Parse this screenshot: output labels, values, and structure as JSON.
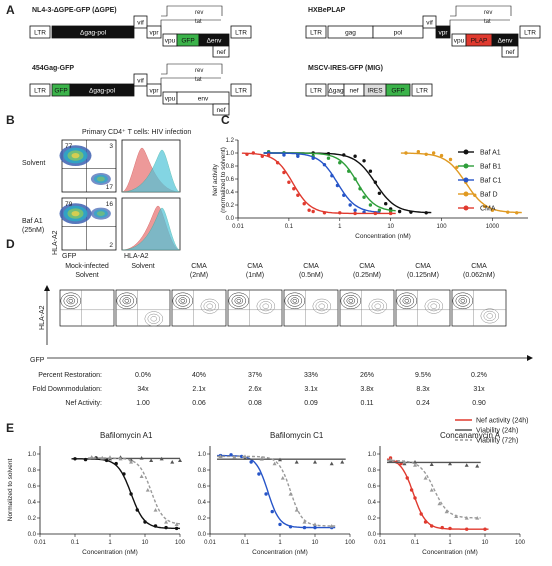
{
  "panel_letters": [
    "A",
    "B",
    "C",
    "D",
    "E"
  ],
  "constructs": [
    {
      "title": "NL4-3-ΔGPE-GFP (ΔGPE)",
      "blocks": [
        "LTR",
        "Δgag-pol",
        "vif",
        "vpr",
        "vpu",
        "GFP",
        "Δenv",
        "nef",
        "LTR"
      ],
      "labels": [
        "rev",
        "tat"
      ]
    },
    {
      "title": "HXBePLAP",
      "blocks": [
        "LTR",
        "gag",
        "pol",
        "vif",
        "vpr",
        "vpu",
        "PLAP",
        "Δenv",
        "nef",
        "LTR"
      ],
      "labels": [
        "rev",
        "tat"
      ]
    },
    {
      "title": "454Gag-GFP",
      "blocks": [
        "LTR",
        "GFP",
        "Δgag-pol",
        "vif",
        "vpr",
        "vpu",
        "env",
        "nef",
        "LTR"
      ],
      "labels": [
        "rev",
        "tat"
      ]
    },
    {
      "title": "MSCV-IRES-GFP (MIG)",
      "blocks": [
        "LTR",
        "Δgag",
        "nef",
        "IRES",
        "GFP",
        "LTR"
      ]
    }
  ],
  "panel_b": {
    "title": "Primary CD4⁺ T cells: HIV infection",
    "rows": [
      {
        "label": "Solvent",
        "quadrants": [
          "77",
          "3",
          "17"
        ]
      },
      {
        "label": "Baf A1",
        "label2": "(25nM)",
        "quadrants": [
          "79",
          "16",
          "2"
        ]
      }
    ],
    "xlabel_left": "GFP",
    "ylabel": "HLA-A2",
    "xlabel_right": "HLA-A2"
  },
  "colors": {
    "baf_a1": "#111111",
    "baf_b1": "#2e9e3a",
    "baf_c1": "#2755c8",
    "baf_d": "#e09a22",
    "cma": "#e03a2f",
    "viab": "#555555",
    "viab72": "#9a9a9a",
    "solvent_hist": "#e87878",
    "cma_hist": "#4fc4d8"
  },
  "chart_data": [
    {
      "type": "scatter",
      "panel": "C",
      "ylabel": "Nef activity",
      "ylabel2": "(normalized to solvent)",
      "xlabel": "Concentration (nM)",
      "xscale": "log",
      "xlim": [
        0.01,
        5000
      ],
      "ylim": [
        0,
        1.2
      ],
      "xticks": [
        "0.01",
        "0.1",
        "1",
        "10",
        "100",
        "1000"
      ],
      "yticks": [
        "0.0",
        "0.2",
        "0.4",
        "0.6",
        "0.8",
        "1.0",
        "1.2"
      ],
      "legend_position": "top-right",
      "series": [
        {
          "name": "Baf A1",
          "ec50": 5,
          "top": 1,
          "bottom": 0.08,
          "hill": 2.2,
          "x": [
            0.04,
            0.08,
            0.15,
            0.3,
            0.6,
            1.2,
            2,
            3,
            4,
            5,
            6,
            8,
            10,
            15,
            25,
            50
          ],
          "y": [
            1.0,
            1.0,
            0.98,
            1.0,
            0.99,
            0.97,
            0.95,
            0.88,
            0.72,
            0.55,
            0.38,
            0.22,
            0.14,
            0.1,
            0.09,
            0.08
          ]
        },
        {
          "name": "Baf B1",
          "ec50": 2.2,
          "top": 1,
          "bottom": 0.1,
          "hill": 2.5,
          "x": [
            0.04,
            0.08,
            0.15,
            0.3,
            0.6,
            1,
            1.5,
            2,
            2.5,
            3,
            4,
            6,
            10
          ],
          "y": [
            1.02,
            1.0,
            0.98,
            0.95,
            0.92,
            0.85,
            0.72,
            0.6,
            0.45,
            0.32,
            0.2,
            0.12,
            0.1
          ]
        },
        {
          "name": "Baf C1",
          "ec50": 0.9,
          "top": 1,
          "bottom": 0.08,
          "hill": 2.4,
          "x": [
            0.04,
            0.08,
            0.15,
            0.3,
            0.5,
            0.7,
            0.9,
            1.2,
            1.6,
            2,
            3,
            5
          ],
          "y": [
            1.0,
            0.97,
            0.95,
            0.92,
            0.82,
            0.65,
            0.5,
            0.35,
            0.2,
            0.12,
            0.09,
            0.08
          ]
        },
        {
          "name": "Baf D",
          "ec50": 300,
          "top": 1,
          "bottom": 0.08,
          "hill": 2.2,
          "x": [
            20,
            35,
            50,
            70,
            100,
            150,
            200,
            300,
            450,
            700,
            1000,
            2000,
            3000
          ],
          "y": [
            1.0,
            1.02,
            0.98,
            1.0,
            0.96,
            0.9,
            0.78,
            0.55,
            0.35,
            0.18,
            0.12,
            0.09,
            0.08
          ]
        },
        {
          "name": "CMA",
          "ec50": 0.12,
          "top": 1,
          "bottom": 0.07,
          "hill": 2.5,
          "x": [
            0.015,
            0.02,
            0.03,
            0.04,
            0.06,
            0.08,
            0.1,
            0.125,
            0.15,
            0.2,
            0.25,
            0.3,
            0.5,
            1,
            2,
            5,
            10
          ],
          "y": [
            0.98,
            1.0,
            0.95,
            0.97,
            0.85,
            0.7,
            0.55,
            0.45,
            0.35,
            0.22,
            0.12,
            0.1,
            0.08,
            0.08,
            0.07,
            0.07,
            0.07
          ]
        }
      ]
    },
    {
      "type": "scatter",
      "panel": "E1",
      "title": "Bafilomycin A1",
      "ylabel": "Normalized to solvent",
      "xlabel": "Concentration (nM)",
      "xscale": "log",
      "xlim": [
        0.01,
        100
      ],
      "ylim": [
        0,
        1.1
      ],
      "xticks": [
        "0.01",
        "0.1",
        "1",
        "10",
        "100"
      ],
      "yticks": [
        "0.0",
        "0.2",
        "0.4",
        "0.6",
        "0.8",
        "1.0"
      ],
      "series": [
        {
          "name": "Nef activity (24h)",
          "ec50": 4,
          "top": 0.94,
          "bottom": 0.07,
          "hill": 2.3,
          "x": [
            0.1,
            0.2,
            0.4,
            0.8,
            1.5,
            2.5,
            4,
            6,
            10,
            20,
            40,
            80
          ],
          "y": [
            0.94,
            0.93,
            0.95,
            0.92,
            0.88,
            0.75,
            0.5,
            0.3,
            0.15,
            0.1,
            0.08,
            0.07
          ]
        },
        {
          "name": "Viability (24h)",
          "ec50": 9999,
          "top": 0.95,
          "bottom": 0.9,
          "hill": 1,
          "x": [
            0.3,
            0.6,
            1,
            2,
            4,
            8,
            15,
            30,
            60,
            100
          ],
          "y": [
            0.96,
            0.95,
            0.94,
            0.96,
            0.93,
            0.95,
            0.92,
            0.94,
            0.9,
            0.92
          ]
        },
        {
          "name": "Viability (72h)",
          "ec50": 15,
          "top": 0.95,
          "bottom": 0.12,
          "hill": 2.5,
          "x": [
            0.3,
            0.6,
            1,
            2,
            4,
            8,
            12,
            20,
            40,
            80
          ],
          "y": [
            0.96,
            0.95,
            0.96,
            0.94,
            0.9,
            0.72,
            0.55,
            0.3,
            0.15,
            0.12
          ]
        }
      ]
    },
    {
      "type": "scatter",
      "panel": "E2",
      "title": "Bafilomycin C1",
      "xlabel": "Concentration (nM)",
      "xscale": "log",
      "xlim": [
        0.01,
        100
      ],
      "ylim": [
        0,
        1.1
      ],
      "xticks": [
        "0.01",
        "0.1",
        "1",
        "10",
        "100"
      ],
      "yticks": [
        "0.0",
        "0.2",
        "0.4",
        "0.6",
        "0.8",
        "1.0"
      ],
      "series": [
        {
          "name": "Nef activity (24h)",
          "ec50": 0.45,
          "top": 0.98,
          "bottom": 0.08,
          "hill": 2.6,
          "x": [
            0.02,
            0.04,
            0.08,
            0.15,
            0.25,
            0.4,
            0.6,
            1,
            2,
            5,
            10,
            30
          ],
          "y": [
            0.98,
            0.99,
            0.97,
            0.9,
            0.75,
            0.5,
            0.28,
            0.12,
            0.09,
            0.08,
            0.08,
            0.08
          ]
        },
        {
          "name": "Viability (24h)",
          "ec50": 9999,
          "top": 0.95,
          "bottom": 0.88,
          "hill": 1,
          "x": [
            0.02,
            0.05,
            0.1,
            0.3,
            1,
            3,
            10,
            30,
            60
          ],
          "y": [
            0.97,
            0.96,
            0.95,
            0.94,
            0.93,
            0.9,
            0.9,
            0.88,
            0.9
          ]
        },
        {
          "name": "Viability (72h)",
          "ec50": 2,
          "top": 0.97,
          "bottom": 0.1,
          "hill": 2.6,
          "x": [
            0.02,
            0.05,
            0.1,
            0.3,
            0.7,
            1.2,
            2,
            3,
            5,
            10,
            30
          ],
          "y": [
            0.97,
            0.96,
            0.97,
            0.95,
            0.88,
            0.7,
            0.5,
            0.3,
            0.15,
            0.12,
            0.1
          ]
        }
      ]
    },
    {
      "type": "scatter",
      "panel": "E3",
      "title": "Concanamycin A",
      "xlabel": "Concentration (nM)",
      "xscale": "log",
      "xlim": [
        0.01,
        100
      ],
      "ylim": [
        0,
        1.1
      ],
      "xticks": [
        "0.01",
        "0.1",
        "1",
        "10",
        "100"
      ],
      "yticks": [
        "0.0",
        "0.2",
        "0.4",
        "0.6",
        "0.8",
        "1.0"
      ],
      "legend_position": "top-right",
      "series": [
        {
          "name": "Nef activity (24h)",
          "ec50": 0.09,
          "top": 0.95,
          "bottom": 0.06,
          "hill": 2.4,
          "x": [
            0.02,
            0.03,
            0.04,
            0.06,
            0.08,
            0.1,
            0.15,
            0.2,
            0.3,
            0.6,
            1,
            3,
            10
          ],
          "y": [
            0.95,
            0.9,
            0.88,
            0.7,
            0.55,
            0.45,
            0.25,
            0.15,
            0.1,
            0.08,
            0.07,
            0.06,
            0.06
          ]
        },
        {
          "name": "Viability (24h)",
          "ec50": 9999,
          "top": 0.9,
          "bottom": 0.85,
          "hill": 1,
          "x": [
            0.02,
            0.05,
            0.1,
            0.3,
            1,
            3,
            6
          ],
          "y": [
            0.92,
            0.88,
            0.9,
            0.87,
            0.88,
            0.86,
            0.85
          ]
        },
        {
          "name": "Viability (72h)",
          "ec50": 0.35,
          "top": 0.92,
          "bottom": 0.2,
          "hill": 2.2,
          "x": [
            0.02,
            0.05,
            0.1,
            0.2,
            0.3,
            0.5,
            0.8,
            1.5,
            3,
            6
          ],
          "y": [
            0.93,
            0.9,
            0.86,
            0.7,
            0.55,
            0.38,
            0.28,
            0.22,
            0.2,
            0.2
          ]
        }
      ]
    }
  ],
  "panel_d": {
    "columns": [
      {
        "label": "Mock-infected",
        "label2": "Solvent"
      },
      {
        "label": "Solvent",
        "label2": ""
      },
      {
        "label": "CMA",
        "label2": "(2nM)"
      },
      {
        "label": "CMA",
        "label2": "(1nM)"
      },
      {
        "label": "CMA",
        "label2": "(0.5nM)"
      },
      {
        "label": "CMA",
        "label2": "(0.25nM)"
      },
      {
        "label": "CMA",
        "label2": "(0.125nM)"
      },
      {
        "label": "CMA",
        "label2": "(0.062nM)"
      }
    ],
    "ylabel": "HLA-A2",
    "xlabel": "GFP",
    "rows": [
      {
        "label": "Percent Restoration:",
        "values": [
          "0.0%",
          "40%",
          "37%",
          "33%",
          "26%",
          "9.5%",
          "0.2%"
        ]
      },
      {
        "label": "Fold Downmodulation:",
        "values": [
          "34x",
          "2.1x",
          "2.6x",
          "3.1x",
          "3.8x",
          "8.3x",
          "31x"
        ]
      },
      {
        "label": "Nef Activity:",
        "values": [
          "1.00",
          "0.06",
          "0.08",
          "0.09",
          "0.11",
          "0.24",
          "0.90"
        ]
      }
    ]
  }
}
